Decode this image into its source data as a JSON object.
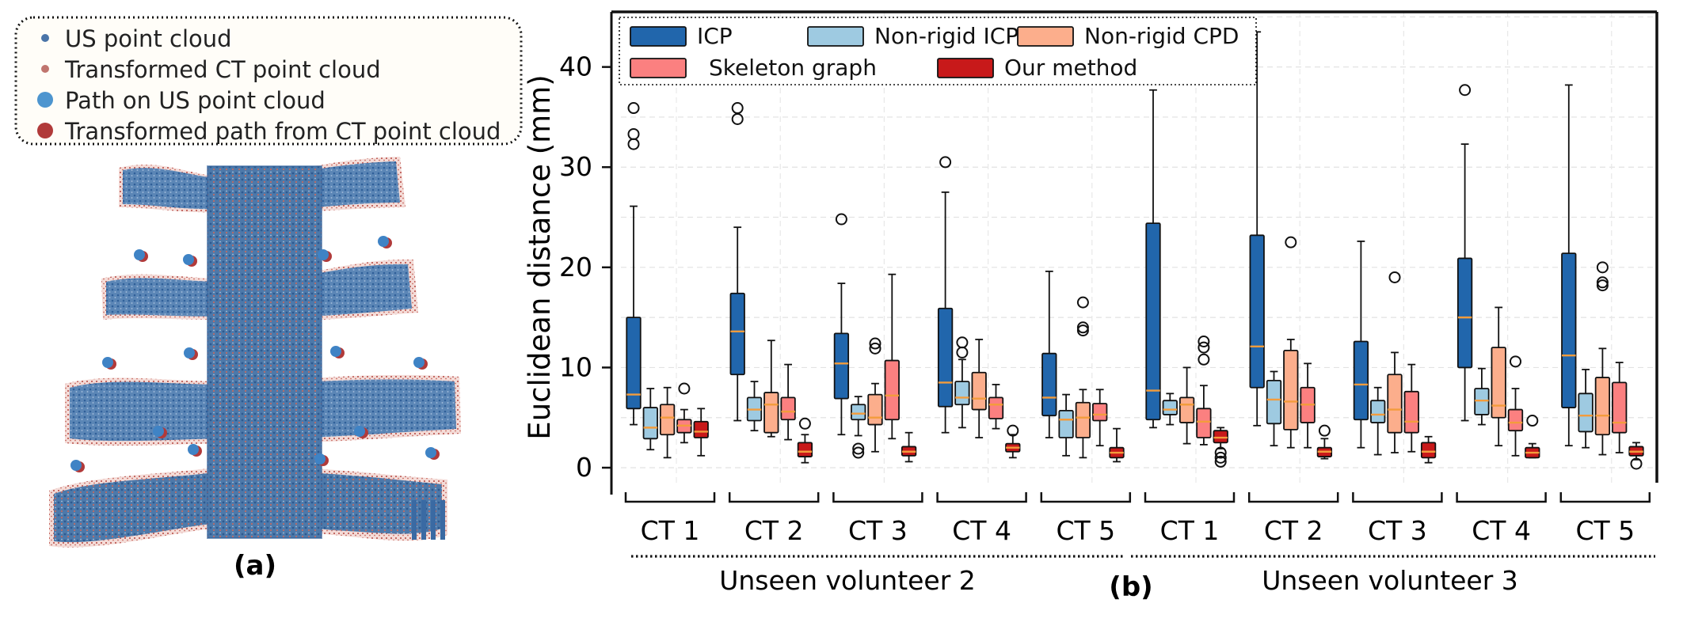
{
  "panel_a": {
    "legend": [
      {
        "label": "US point cloud",
        "color": "#4a74a8",
        "marker": "small"
      },
      {
        "label": "Transformed CT point cloud",
        "color": "#c0756e",
        "marker": "small"
      },
      {
        "label": "Path on US point cloud",
        "color": "#4d95cf",
        "marker": "large"
      },
      {
        "label": "Transformed path from CT point cloud",
        "color": "#b13a3a",
        "marker": "large"
      }
    ],
    "caption": "(a)"
  },
  "panel_b_caption": "(b)",
  "colors": {
    "ICP": "#2166ac",
    "Non-rigid ICP": "#9ecae1",
    "Non-rigid CPD": "#fcae8c",
    "Skeleton graph": "#fb8080",
    "Our method": "#c8191a",
    "median": "#f39c3c",
    "us_cloud": "#4a74a8",
    "ct_cloud": "#c0756e"
  },
  "chart_data": {
    "type": "box",
    "ylabel": "Euclidean distance (mm)",
    "ylim": [
      -1.5,
      45.5
    ],
    "yticks": [
      0,
      10,
      20,
      30,
      40
    ],
    "methods": [
      "ICP",
      "Non-rigid ICP",
      "Non-rigid CPD",
      "Skeleton graph",
      "Our method"
    ],
    "legend": [
      "ICP",
      "Non-rigid ICP",
      "Non-rigid CPD",
      "Skeleton graph",
      "Our method"
    ],
    "groups": [
      {
        "label": "CT 1",
        "volunteer": "Unseen volunteer 2",
        "boxes": [
          {
            "q1": 5.9,
            "med": 7.3,
            "q3": 15.0,
            "lo": 4.3,
            "hi": 26.1,
            "out": [
              32.3,
              33.3,
              35.9
            ]
          },
          {
            "q1": 2.9,
            "med": 4.0,
            "q3": 6.0,
            "lo": 1.8,
            "hi": 7.9,
            "out": []
          },
          {
            "q1": 3.3,
            "med": 5.0,
            "q3": 6.3,
            "lo": 1.0,
            "hi": 8.0,
            "out": []
          },
          {
            "q1": 3.5,
            "med": 4.2,
            "q3": 4.8,
            "lo": 2.5,
            "hi": 5.8,
            "out": [
              7.9
            ]
          },
          {
            "q1": 3.0,
            "med": 3.6,
            "q3": 4.6,
            "lo": 1.2,
            "hi": 5.9,
            "out": []
          }
        ]
      },
      {
        "label": "CT 2",
        "volunteer": "Unseen volunteer 2",
        "boxes": [
          {
            "q1": 9.3,
            "med": 13.6,
            "q3": 17.4,
            "lo": 4.7,
            "hi": 24.0,
            "out": [
              34.8,
              35.9
            ]
          },
          {
            "q1": 4.7,
            "med": 5.8,
            "q3": 7.0,
            "lo": 3.7,
            "hi": 8.6,
            "out": []
          },
          {
            "q1": 3.5,
            "med": 6.3,
            "q3": 7.5,
            "lo": 3.1,
            "hi": 12.7,
            "out": []
          },
          {
            "q1": 4.8,
            "med": 5.6,
            "q3": 7.0,
            "lo": 2.8,
            "hi": 10.3,
            "out": []
          },
          {
            "q1": 1.1,
            "med": 1.6,
            "q3": 2.5,
            "lo": 0.5,
            "hi": 3.3,
            "out": [
              4.4
            ]
          }
        ]
      },
      {
        "label": "CT 3",
        "volunteer": "Unseen volunteer 2",
        "boxes": [
          {
            "q1": 6.9,
            "med": 10.4,
            "q3": 13.4,
            "lo": 3.3,
            "hi": 18.4,
            "out": [
              24.8
            ]
          },
          {
            "q1": 4.8,
            "med": 5.4,
            "q3": 6.3,
            "lo": 3.2,
            "hi": 7.1,
            "out": [
              1.5,
              1.9
            ]
          },
          {
            "q1": 4.3,
            "med": 5.0,
            "q3": 7.3,
            "lo": 1.6,
            "hi": 8.4,
            "out": [
              11.9,
              12.4
            ]
          },
          {
            "q1": 4.8,
            "med": 7.2,
            "q3": 10.7,
            "lo": 2.9,
            "hi": 19.3,
            "out": []
          },
          {
            "q1": 1.2,
            "med": 1.6,
            "q3": 2.1,
            "lo": 0.6,
            "hi": 3.5,
            "out": []
          }
        ]
      },
      {
        "label": "CT 4",
        "volunteer": "Unseen volunteer 2",
        "boxes": [
          {
            "q1": 6.1,
            "med": 8.5,
            "q3": 15.9,
            "lo": 3.5,
            "hi": 27.5,
            "out": [
              30.5
            ]
          },
          {
            "q1": 6.3,
            "med": 7.0,
            "q3": 8.6,
            "lo": 4.0,
            "hi": 10.8,
            "out": [
              11.5,
              12.5
            ]
          },
          {
            "q1": 5.8,
            "med": 6.9,
            "q3": 9.5,
            "lo": 3.0,
            "hi": 12.8,
            "out": []
          },
          {
            "q1": 4.9,
            "med": 6.3,
            "q3": 7.0,
            "lo": 3.9,
            "hi": 8.3,
            "out": []
          },
          {
            "q1": 1.6,
            "med": 2.0,
            "q3": 2.4,
            "lo": 1.0,
            "hi": 3.3,
            "out": [
              3.7
            ]
          }
        ]
      },
      {
        "label": "CT 5",
        "volunteer": "Unseen volunteer 2",
        "boxes": [
          {
            "q1": 5.2,
            "med": 7.0,
            "q3": 11.4,
            "lo": 3.0,
            "hi": 19.6,
            "out": []
          },
          {
            "q1": 3.0,
            "med": 4.8,
            "q3": 5.7,
            "lo": 1.2,
            "hi": 7.3,
            "out": []
          },
          {
            "q1": 3.0,
            "med": 5.0,
            "q3": 6.5,
            "lo": 1.0,
            "hi": 7.8,
            "out": [
              13.7,
              14.0,
              16.5
            ]
          },
          {
            "q1": 4.7,
            "med": 5.3,
            "q3": 6.4,
            "lo": 2.2,
            "hi": 7.8,
            "out": []
          },
          {
            "q1": 1.0,
            "med": 1.5,
            "q3": 2.0,
            "lo": 0.6,
            "hi": 3.9,
            "out": []
          }
        ]
      },
      {
        "label": "CT 1",
        "volunteer": "Unseen volunteer 3",
        "boxes": [
          {
            "q1": 4.8,
            "med": 7.7,
            "q3": 24.4,
            "lo": 4.0,
            "hi": 37.7,
            "out": []
          },
          {
            "q1": 5.3,
            "med": 5.8,
            "q3": 6.7,
            "lo": 4.3,
            "hi": 7.4,
            "out": []
          },
          {
            "q1": 4.5,
            "med": 6.3,
            "q3": 7.0,
            "lo": 2.4,
            "hi": 10.0,
            "out": []
          },
          {
            "q1": 3.0,
            "med": 4.6,
            "q3": 5.9,
            "lo": 2.3,
            "hi": 8.2,
            "out": [
              10.8,
              12.0,
              12.6
            ]
          },
          {
            "q1": 2.5,
            "med": 3.0,
            "q3": 3.7,
            "lo": 1.9,
            "hi": 4.0,
            "out": [
              0.6,
              1.0,
              1.5
            ]
          }
        ]
      },
      {
        "label": "CT 2",
        "volunteer": "Unseen volunteer 3",
        "boxes": [
          {
            "q1": 8.0,
            "med": 12.1,
            "q3": 23.2,
            "lo": 4.2,
            "hi": 43.5,
            "out": []
          },
          {
            "q1": 4.4,
            "med": 6.8,
            "q3": 8.7,
            "lo": 2.2,
            "hi": 9.6,
            "out": []
          },
          {
            "q1": 3.8,
            "med": 6.6,
            "q3": 11.7,
            "lo": 2.0,
            "hi": 12.8,
            "out": [
              22.5
            ]
          },
          {
            "q1": 4.5,
            "med": 6.3,
            "q3": 8.0,
            "lo": 2.0,
            "hi": 10.4,
            "out": []
          },
          {
            "q1": 1.1,
            "med": 1.6,
            "q3": 2.0,
            "lo": 0.9,
            "hi": 2.9,
            "out": [
              3.7
            ]
          }
        ]
      },
      {
        "label": "CT 3",
        "volunteer": "Unseen volunteer 3",
        "boxes": [
          {
            "q1": 4.8,
            "med": 8.3,
            "q3": 12.6,
            "lo": 2.0,
            "hi": 22.6,
            "out": []
          },
          {
            "q1": 4.5,
            "med": 5.3,
            "q3": 6.7,
            "lo": 1.3,
            "hi": 8.0,
            "out": []
          },
          {
            "q1": 3.5,
            "med": 5.8,
            "q3": 9.3,
            "lo": 1.5,
            "hi": 11.5,
            "out": [
              19.0
            ]
          },
          {
            "q1": 3.5,
            "med": 4.6,
            "q3": 7.6,
            "lo": 1.6,
            "hi": 10.3,
            "out": []
          },
          {
            "q1": 1.0,
            "med": 1.6,
            "q3": 2.5,
            "lo": 0.5,
            "hi": 3.1,
            "out": []
          }
        ]
      },
      {
        "label": "CT 4",
        "volunteer": "Unseen volunteer 3",
        "boxes": [
          {
            "q1": 10.0,
            "med": 15.0,
            "q3": 20.9,
            "lo": 4.7,
            "hi": 32.3,
            "out": [
              37.7
            ]
          },
          {
            "q1": 5.3,
            "med": 6.7,
            "q3": 7.9,
            "lo": 4.3,
            "hi": 9.9,
            "out": []
          },
          {
            "q1": 5.0,
            "med": 6.2,
            "q3": 12.0,
            "lo": 2.2,
            "hi": 16.0,
            "out": []
          },
          {
            "q1": 3.7,
            "med": 4.5,
            "q3": 5.8,
            "lo": 1.2,
            "hi": 7.9,
            "out": [
              10.6
            ]
          },
          {
            "q1": 1.0,
            "med": 1.5,
            "q3": 2.0,
            "lo": 1.0,
            "hi": 2.4,
            "out": [
              4.7
            ]
          }
        ]
      },
      {
        "label": "CT 5",
        "volunteer": "Unseen volunteer 3",
        "boxes": [
          {
            "q1": 6.0,
            "med": 11.2,
            "q3": 21.4,
            "lo": 2.2,
            "hi": 38.2,
            "out": []
          },
          {
            "q1": 3.6,
            "med": 5.2,
            "q3": 7.4,
            "lo": 2.0,
            "hi": 9.8,
            "out": []
          },
          {
            "q1": 3.3,
            "med": 5.2,
            "q3": 9.0,
            "lo": 1.3,
            "hi": 11.9,
            "out": [
              18.2,
              18.5,
              20.0
            ]
          },
          {
            "q1": 3.5,
            "med": 4.5,
            "q3": 8.5,
            "lo": 1.5,
            "hi": 10.5,
            "out": []
          },
          {
            "q1": 1.2,
            "med": 1.6,
            "q3": 2.1,
            "lo": 0.8,
            "hi": 2.5,
            "out": [
              0.4
            ]
          }
        ]
      }
    ],
    "volunteer_labels": [
      "Unseen volunteer 2",
      "Unseen volunteer 3"
    ]
  }
}
